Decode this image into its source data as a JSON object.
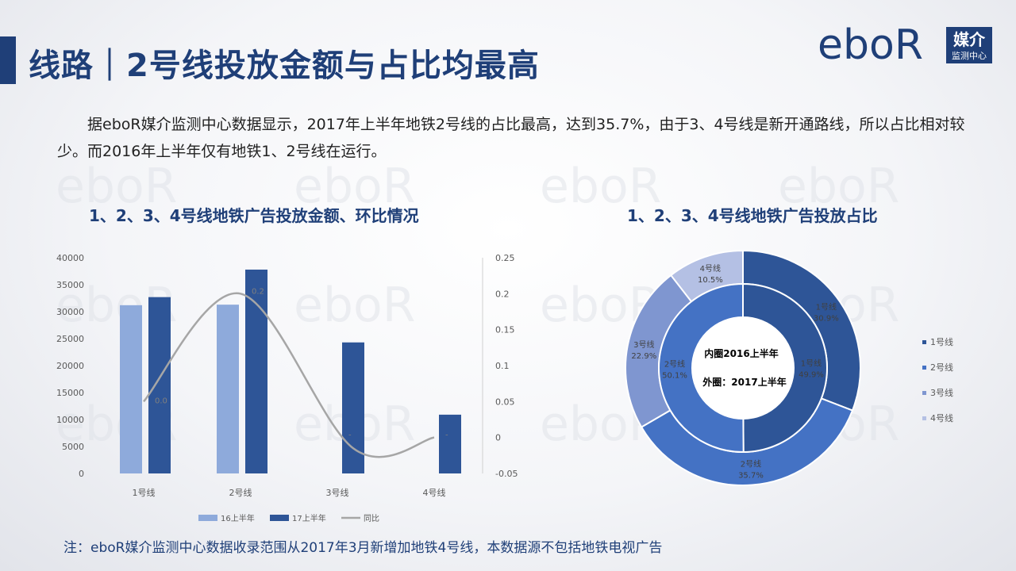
{
  "page": {
    "title": "线路｜2号线投放金额与占比均最高",
    "logo_text": "eboR",
    "logo_badge_1": "媒介",
    "logo_badge_2": "监测中心",
    "paragraph": "据eboR媒介监测中心数据显示，2017年上半年地铁2号线的占比最高，达到35.7%，由于3、4号线是新开通路线，所以占比相对较少。而2016年上半年仅有地铁1、2号线在运行。",
    "note": "注：eboR媒介监测中心数据收录范围从2017年3月新增加地铁4号线，本数据源不包括地铁电视广告",
    "accent_color": "#1f3f78"
  },
  "chart_data": [
    {
      "type": "bar",
      "title": "1、2、3、4号线地铁广告投放金额、环比情况",
      "categories": [
        "1号线",
        "2号线",
        "3号线",
        "4号线"
      ],
      "y_ticks": [
        "40000",
        "35000",
        "30000",
        "25000",
        "20000",
        "15000",
        "10000",
        "5000",
        "0"
      ],
      "y2_ticks": [
        "0.25",
        "0.2",
        "0.15",
        "0.1",
        "0.05",
        "0",
        "-0.05"
      ],
      "ylim": [
        0,
        40000
      ],
      "y2lim": [
        -0.05,
        0.25
      ],
      "series": [
        {
          "name": "16上半年",
          "kind": "bar",
          "color": "#8eaadb",
          "values": [
            31200,
            31300,
            null,
            null
          ]
        },
        {
          "name": "17上半年",
          "kind": "bar",
          "color": "#2e5597",
          "values": [
            32700,
            37800,
            24300,
            10900
          ]
        },
        {
          "name": "同比",
          "kind": "line",
          "color": "#a6a6a6",
          "values": [
            0.05,
            0.2,
            null,
            null
          ]
        }
      ],
      "line_trail": [
        -0.015,
        0.0
      ],
      "data_labels": [
        "0.0",
        "0.2",
        "-",
        "-"
      ],
      "legend_position": "bottom"
    },
    {
      "type": "pie",
      "subtype": "doughnut",
      "title": "1、2、3、4号线地铁广告投放占比",
      "center_text_1": "内圈2016上半年",
      "center_text_2": "外圈：2017上半年",
      "inner": [
        {
          "name": "1号线",
          "value": 49.9,
          "label": "49.9%",
          "color": "#2e5597"
        },
        {
          "name": "2号线",
          "value": 50.1,
          "label": "50.1%",
          "color": "#4472c4"
        }
      ],
      "outer": [
        {
          "name": "1号线",
          "value": 30.9,
          "label": "30.9%",
          "color": "#2e5597"
        },
        {
          "name": "2号线",
          "value": 35.7,
          "label": "35.7%",
          "color": "#4472c4"
        },
        {
          "name": "3号线",
          "value": 22.9,
          "label": "22.9%",
          "color": "#7f96d0"
        },
        {
          "name": "4号线",
          "value": 10.5,
          "label": "10.5%",
          "color": "#b4c0e4"
        }
      ],
      "legend": [
        {
          "name": "1号线",
          "color": "#2e5597"
        },
        {
          "name": "2号线",
          "color": "#4472c4"
        },
        {
          "name": "3号线",
          "color": "#7f96d0"
        },
        {
          "name": "4号线",
          "color": "#b4c0e4"
        }
      ],
      "legend_position": "right"
    }
  ]
}
